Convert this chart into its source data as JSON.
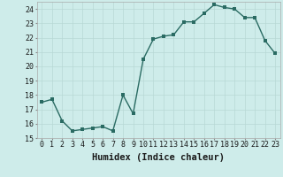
{
  "x": [
    0,
    1,
    2,
    3,
    4,
    5,
    6,
    7,
    8,
    9,
    10,
    11,
    12,
    13,
    14,
    15,
    16,
    17,
    18,
    19,
    20,
    21,
    22,
    23
  ],
  "y": [
    17.5,
    17.7,
    16.2,
    15.5,
    15.6,
    15.7,
    15.8,
    15.5,
    18.0,
    16.7,
    20.5,
    21.9,
    22.1,
    22.2,
    23.1,
    23.1,
    23.7,
    24.3,
    24.1,
    24.0,
    23.4,
    23.4,
    21.8,
    20.9
  ],
  "xlabel": "Humidex (Indice chaleur)",
  "ylim": [
    15,
    24.5
  ],
  "xlim": [
    -0.5,
    23.5
  ],
  "yticks": [
    15,
    16,
    17,
    18,
    19,
    20,
    21,
    22,
    23,
    24
  ],
  "xticks": [
    0,
    1,
    2,
    3,
    4,
    5,
    6,
    7,
    8,
    9,
    10,
    11,
    12,
    13,
    14,
    15,
    16,
    17,
    18,
    19,
    20,
    21,
    22,
    23
  ],
  "line_color": "#2a6b63",
  "marker_color": "#2a6b63",
  "bg_color": "#ceecea",
  "grid_color_major": "#b8d8d5",
  "grid_color_minor": "#c8e8e5",
  "tick_label_fontsize": 6.0,
  "xlabel_fontsize": 7.5,
  "line_width": 1.0,
  "marker_size": 2.5
}
